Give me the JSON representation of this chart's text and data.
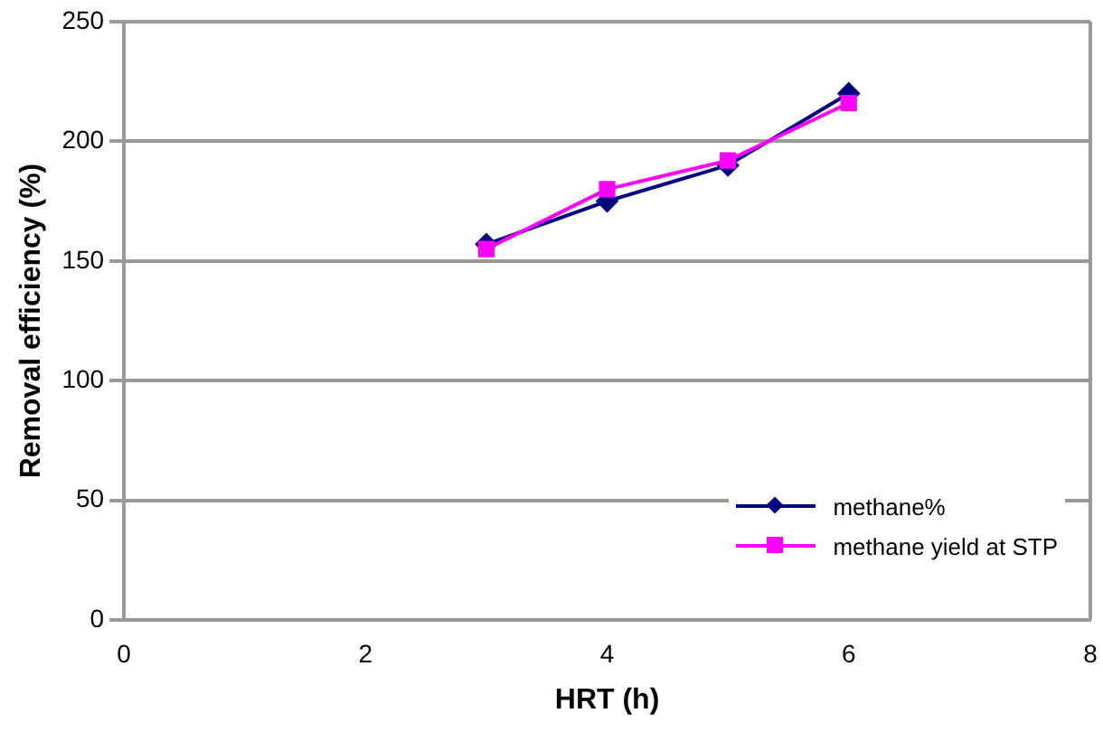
{
  "chart_data": {
    "type": "line",
    "xlabel": "HRT (h)",
    "ylabel": "Removal efficiency (%)",
    "x": [
      3,
      4,
      5,
      6
    ],
    "series": [
      {
        "name": "methane%",
        "color": "#000080",
        "values": [
          157,
          175,
          190,
          220
        ],
        "marker": "diamond"
      },
      {
        "name": "methane yield at STP",
        "color": "#ff00ff",
        "values": [
          155,
          180,
          192,
          216
        ],
        "marker": "square"
      }
    ],
    "xlim": [
      0,
      8
    ],
    "xticks": [
      0,
      2,
      4,
      6,
      8
    ],
    "ylim": [
      0,
      250
    ],
    "yticks": [
      0,
      50,
      100,
      150,
      200,
      250
    ],
    "grid": "y",
    "legend": "bottom right",
    "line_style": "solid"
  }
}
